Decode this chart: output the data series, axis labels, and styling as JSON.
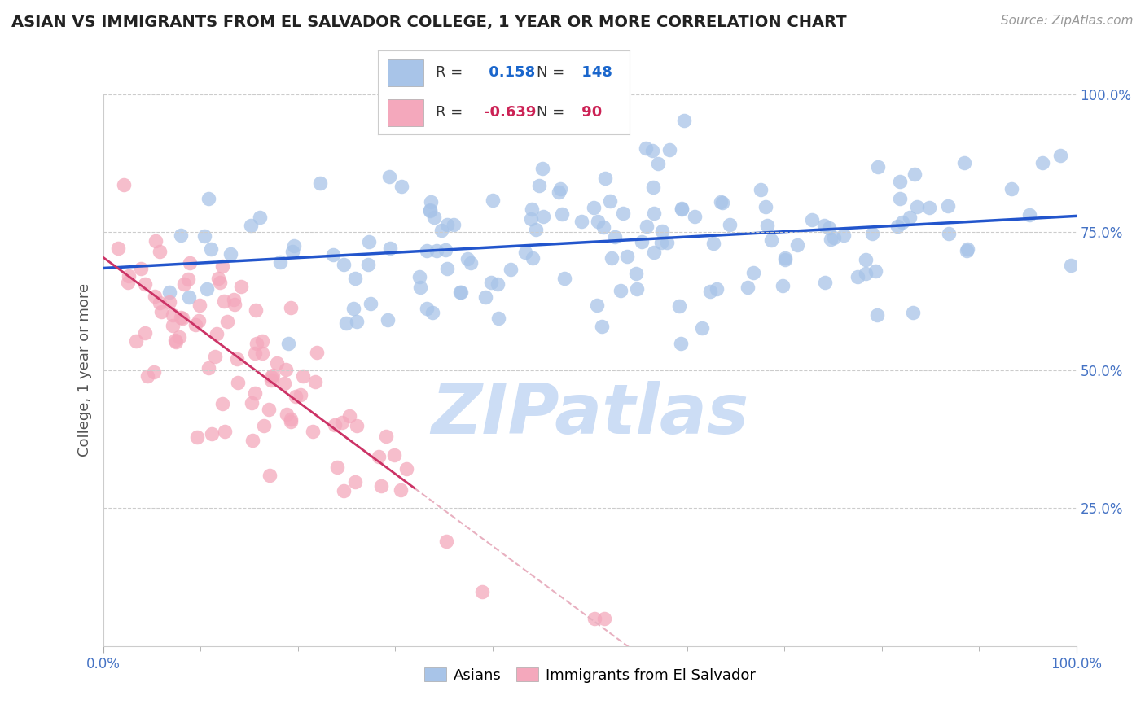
{
  "title": "ASIAN VS IMMIGRANTS FROM EL SALVADOR COLLEGE, 1 YEAR OR MORE CORRELATION CHART",
  "source_text": "Source: ZipAtlas.com",
  "ylabel": "College, 1 year or more",
  "r_asian": 0.158,
  "n_asian": 148,
  "r_salvador": -0.639,
  "n_salvador": 90,
  "asian_color": "#a8c4e8",
  "salvador_color": "#f4a8bc",
  "trend_asian_color": "#2255cc",
  "trend_salvador_color": "#cc3366",
  "trend_salvador_dash_color": "#e8b0c0",
  "background_color": "#ffffff",
  "grid_color": "#cccccc",
  "title_color": "#222222",
  "watermark_text": "ZIPatlas",
  "watermark_color": "#ccddf5",
  "legend_label_asian": "Asians",
  "legend_label_salvador": "Immigrants from El Salvador",
  "ytick_color": "#4472c4",
  "xtick_color": "#4472c4"
}
